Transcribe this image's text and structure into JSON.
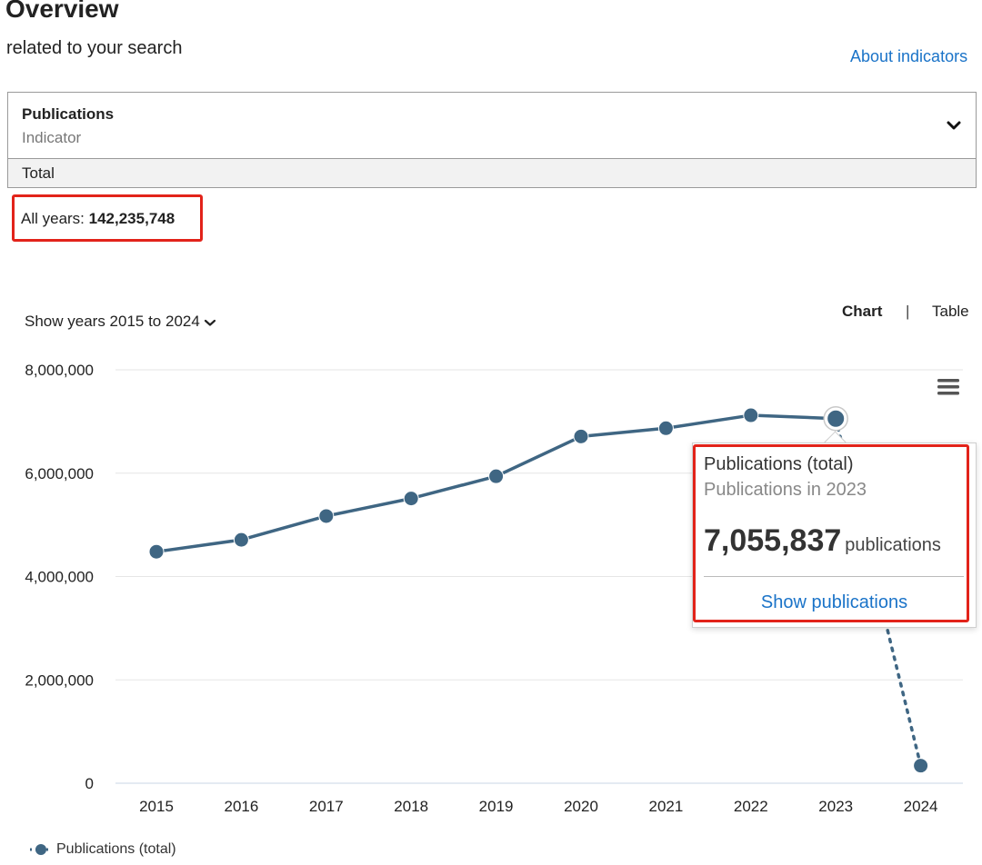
{
  "header": {
    "title": "Overview",
    "subtitle": "related to your search",
    "about_link": "About indicators"
  },
  "indicator": {
    "name": "Publications",
    "caption": "Indicator",
    "aggregation": "Total"
  },
  "summary": {
    "label": "All years: ",
    "value": "142,235,748"
  },
  "controls": {
    "years_selector": "Show years 2015 to 2024",
    "view_chart": "Chart",
    "view_separator": "|",
    "view_table": "Table"
  },
  "tooltip": {
    "series": "Publications (total)",
    "year_line": "Publications in 2023",
    "value": "7,055,837",
    "unit": "publications",
    "link": "Show publications"
  },
  "colors": {
    "series": "#3f6683",
    "accent_link": "#1a73c8",
    "highlight": "#e2231a",
    "grid": "#e6e6e6"
  },
  "chart_data": {
    "type": "line",
    "title": "",
    "xlabel": "",
    "ylabel": "",
    "x": [
      2015,
      2016,
      2017,
      2018,
      2019,
      2020,
      2021,
      2022,
      2023,
      2024
    ],
    "ylim": [
      0,
      8000000
    ],
    "y_ticks": [
      0,
      2000000,
      4000000,
      6000000,
      8000000
    ],
    "y_tick_labels": [
      "0",
      "2,000,000",
      "4,000,000",
      "6,000,000",
      "8,000,000"
    ],
    "grid": true,
    "legend_position": "bottom-left",
    "series": [
      {
        "name": "Publications (total)",
        "values": [
          4480000,
          4710000,
          5170000,
          5510000,
          5940000,
          6710000,
          6870000,
          7120000,
          7055837,
          340000
        ],
        "last_segment_dotted": true
      }
    ],
    "highlighted_point": 2023
  }
}
